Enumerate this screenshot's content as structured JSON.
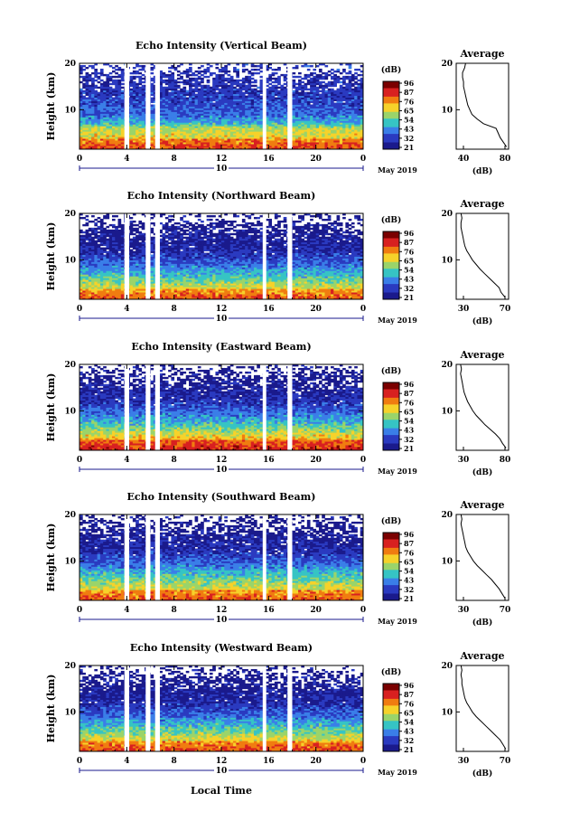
{
  "figure": {
    "date_label": "May 2019",
    "x_label": "Local Time",
    "day_label": "10",
    "accent": "#1a1a8c"
  },
  "colorbar": {
    "unit": "(dB)",
    "ticks": [
      "96",
      "87",
      "76",
      "65",
      "54",
      "43",
      "32",
      "21"
    ],
    "colors": [
      "#7a0000",
      "#d82020",
      "#f07c10",
      "#f6d22a",
      "#9ad46a",
      "#36c4c4",
      "#3a7ee8",
      "#2a3ac0",
      "#1a1a8c"
    ]
  },
  "chart_data": [
    {
      "type": "heatmap",
      "title": "Echo Intensity (Vertical Beam)",
      "ylabel": "Height (km)",
      "xlabel": "",
      "xlim": [
        0,
        24
      ],
      "ylim": [
        1.5,
        20
      ],
      "x_ticks": [
        "0",
        "4",
        "8",
        "12",
        "16",
        "20",
        "0"
      ],
      "y_ticks": [
        "20",
        "10"
      ],
      "gaps_hours": [
        [
          3.8,
          4.2
        ],
        [
          5.6,
          6.0
        ],
        [
          6.4,
          6.8
        ],
        [
          15.5,
          15.8
        ],
        [
          17.6,
          18.0
        ]
      ],
      "profile": {
        "title": "Average",
        "xlabel": "(dB)",
        "x_ticks": [
          "40",
          "80"
        ],
        "xlim": [
          30,
          80
        ],
        "heights": [
          2,
          3,
          4,
          5,
          6,
          7,
          8,
          9,
          10,
          11,
          12,
          13,
          14,
          15,
          16,
          17,
          18,
          19,
          20
        ],
        "values": [
          78,
          75,
          72,
          70,
          68,
          56,
          50,
          45,
          43,
          41,
          40,
          39,
          38,
          37,
          37,
          36,
          36,
          38,
          39
        ]
      }
    },
    {
      "type": "heatmap",
      "title": "Echo Intensity (Northward Beam)",
      "ylabel": "Height (km)",
      "xlabel": "",
      "xlim": [
        0,
        24
      ],
      "ylim": [
        1.5,
        20
      ],
      "x_ticks": [
        "0",
        "4",
        "8",
        "12",
        "16",
        "20",
        "0"
      ],
      "y_ticks": [
        "20",
        "10"
      ],
      "gaps_hours": [
        [
          3.8,
          4.2
        ],
        [
          5.6,
          6.0
        ],
        [
          6.4,
          6.8
        ],
        [
          15.5,
          15.8
        ],
        [
          17.6,
          18.0
        ]
      ],
      "profile": {
        "title": "Average",
        "xlabel": "(dB)",
        "x_ticks": [
          "30",
          "70"
        ],
        "xlim": [
          25,
          80
        ],
        "heights": [
          2,
          3,
          4,
          5,
          6,
          7,
          8,
          9,
          10,
          11,
          12,
          13,
          14,
          15,
          16,
          17,
          18,
          19,
          20
        ],
        "values": [
          76,
          72,
          70,
          65,
          60,
          55,
          50,
          46,
          42,
          39,
          36,
          34,
          33,
          32,
          31,
          30,
          30,
          31,
          30
        ]
      }
    },
    {
      "type": "heatmap",
      "title": "Echo Intensity (Eastward Beam)",
      "ylabel": "Height (km)",
      "xlabel": "",
      "xlim": [
        0,
        24
      ],
      "ylim": [
        1.5,
        20
      ],
      "x_ticks": [
        "0",
        "4",
        "8",
        "12",
        "16",
        "20",
        "0"
      ],
      "y_ticks": [
        "20",
        "10"
      ],
      "gaps_hours": [
        [
          3.8,
          4.2
        ],
        [
          5.6,
          6.0
        ],
        [
          6.4,
          6.8
        ],
        [
          15.5,
          15.8
        ],
        [
          17.6,
          18.0
        ]
      ],
      "profile": {
        "title": "Average",
        "xlabel": "(dB)",
        "x_ticks": [
          "30",
          "80"
        ],
        "xlim": [
          25,
          85
        ],
        "heights": [
          2,
          3,
          4,
          5,
          6,
          7,
          8,
          9,
          10,
          11,
          12,
          13,
          14,
          15,
          16,
          17,
          18,
          19,
          20
        ],
        "values": [
          82,
          78,
          75,
          70,
          64,
          58,
          53,
          48,
          44,
          41,
          38,
          36,
          34,
          33,
          32,
          31,
          30,
          31,
          30
        ]
      }
    },
    {
      "type": "heatmap",
      "title": "Echo Intensity (Southward Beam)",
      "ylabel": "Height (km)",
      "xlabel": "",
      "xlim": [
        0,
        24
      ],
      "ylim": [
        1.5,
        20
      ],
      "x_ticks": [
        "0",
        "4",
        "8",
        "12",
        "16",
        "20",
        "0"
      ],
      "y_ticks": [
        "20",
        "10"
      ],
      "gaps_hours": [
        [
          3.8,
          4.2
        ],
        [
          5.6,
          6.0
        ],
        [
          6.4,
          6.8
        ],
        [
          15.5,
          15.8
        ],
        [
          17.6,
          18.0
        ]
      ],
      "profile": {
        "title": "Average",
        "xlabel": "(dB)",
        "x_ticks": [
          "30",
          "70"
        ],
        "xlim": [
          25,
          80
        ],
        "heights": [
          2,
          3,
          4,
          5,
          6,
          7,
          8,
          9,
          10,
          11,
          12,
          13,
          14,
          15,
          16,
          17,
          18,
          19,
          20
        ],
        "values": [
          76,
          73,
          70,
          66,
          62,
          57,
          52,
          47,
          43,
          40,
          37,
          35,
          34,
          33,
          32,
          31,
          30,
          31,
          30
        ]
      }
    },
    {
      "type": "heatmap",
      "title": "Echo Intensity (Westward Beam)",
      "ylabel": "Height (km)",
      "xlabel": "",
      "xlim": [
        0,
        24
      ],
      "ylim": [
        1.5,
        20
      ],
      "x_ticks": [
        "0",
        "4",
        "8",
        "12",
        "16",
        "20",
        "0"
      ],
      "y_ticks": [
        "20",
        "10"
      ],
      "gaps_hours": [
        [
          3.8,
          4.2
        ],
        [
          5.6,
          6.0
        ],
        [
          6.4,
          6.8
        ],
        [
          15.5,
          15.8
        ],
        [
          17.6,
          18.0
        ]
      ],
      "profile": {
        "title": "Average",
        "xlabel": "(dB)",
        "x_ticks": [
          "30",
          "70"
        ],
        "xlim": [
          25,
          80
        ],
        "heights": [
          2,
          3,
          4,
          5,
          6,
          7,
          8,
          9,
          10,
          11,
          12,
          13,
          14,
          15,
          16,
          17,
          18,
          19,
          20
        ],
        "values": [
          77,
          74,
          71,
          66,
          61,
          56,
          51,
          46,
          42,
          39,
          36,
          34,
          33,
          32,
          31,
          31,
          30,
          31,
          30
        ]
      }
    }
  ]
}
